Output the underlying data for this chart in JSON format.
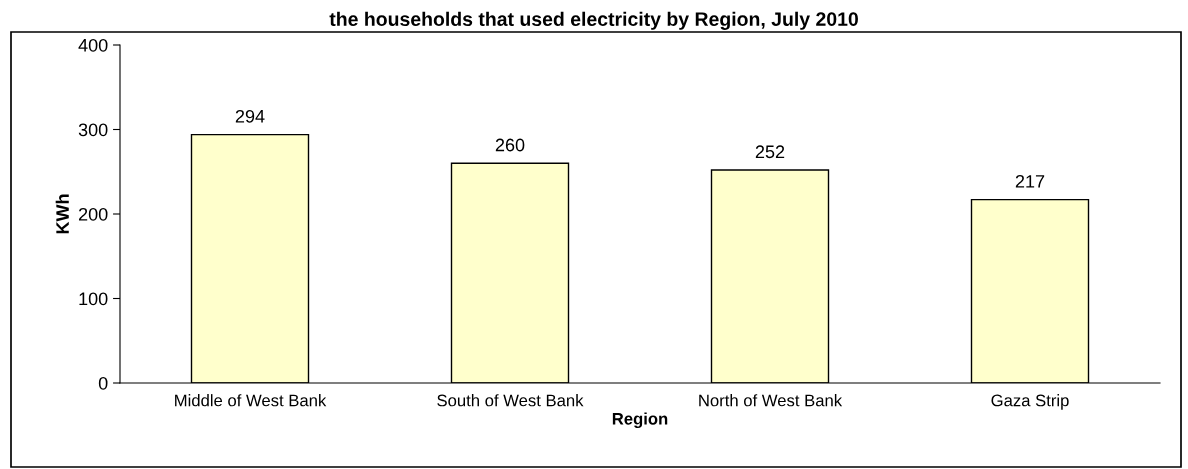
{
  "chart_data": {
    "type": "bar",
    "title": "the households that used electricity by Region, July 2010",
    "xlabel": "Region",
    "ylabel": "KWh",
    "categories": [
      "Middle of West Bank",
      "South of West Bank",
      "North of West Bank",
      "Gaza Strip"
    ],
    "values": [
      294,
      260,
      252,
      217
    ],
    "color": "#ffffcc",
    "ylim": [
      0,
      400
    ],
    "yticks": [
      0,
      100,
      200,
      300,
      400
    ],
    "data_labels": true,
    "grid": false,
    "legend": false
  }
}
